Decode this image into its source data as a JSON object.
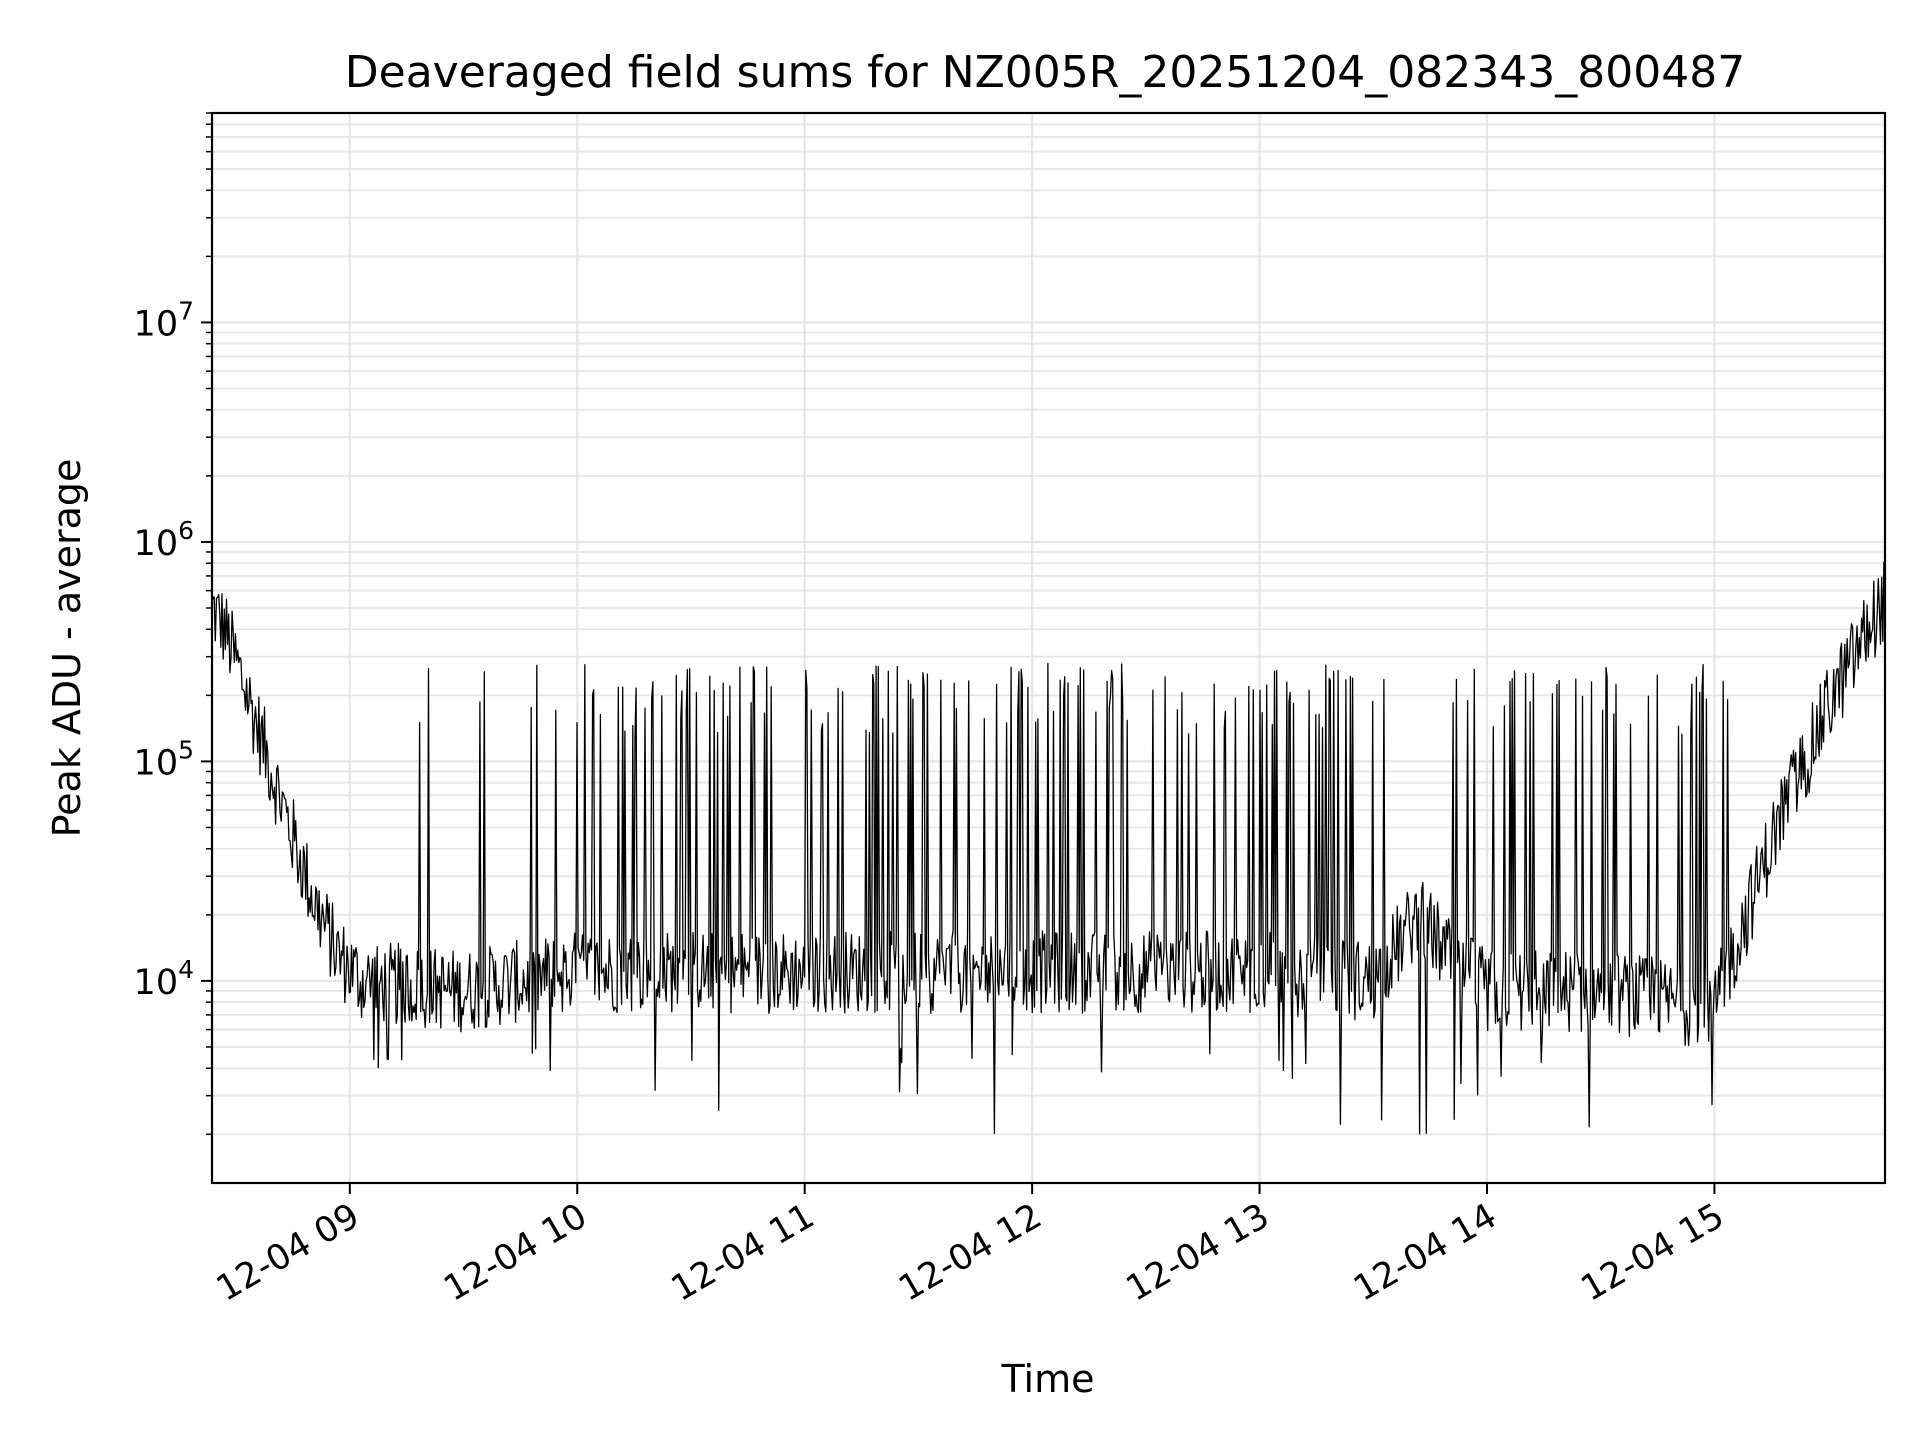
{
  "chart_data": {
    "type": "line",
    "title": "Deaveraged field sums for NZ005R_20251204_082343_800487",
    "xlabel": "Time",
    "ylabel": "Peak ADU - average",
    "yscale": "log",
    "xlim_hours": [
      8.394,
      15.75
    ],
    "ylim": [
      1200,
      90000000
    ],
    "x_ticks": [
      {
        "value": 9,
        "label": "12-04 09"
      },
      {
        "value": 10,
        "label": "12-04 10"
      },
      {
        "value": 11,
        "label": "12-04 11"
      },
      {
        "value": 12,
        "label": "12-04 12"
      },
      {
        "value": 13,
        "label": "12-04 13"
      },
      {
        "value": 14,
        "label": "12-04 14"
      },
      {
        "value": 15,
        "label": "12-04 15"
      }
    ],
    "y_ticks": [
      {
        "value": 10000,
        "base": "10",
        "exp": "4"
      },
      {
        "value": 100000,
        "base": "10",
        "exp": "5"
      },
      {
        "value": 1000000,
        "base": "10",
        "exp": "6"
      },
      {
        "value": 10000000,
        "base": "10",
        "exp": "7"
      }
    ],
    "grid": true,
    "line_color": "#000000",
    "grid_color": "#e6e6e6",
    "baseline_envelope": {
      "x": [
        8.394,
        8.45,
        8.55,
        8.65,
        8.75,
        8.85,
        8.95,
        9.05,
        9.5,
        10.0,
        11.0,
        12.0,
        13.0,
        13.5,
        13.7,
        13.85,
        14.0,
        14.5,
        15.0,
        15.1,
        15.2,
        15.3,
        15.4,
        15.5,
        15.6,
        15.7,
        15.75
      ],
      "y": [
        500000,
        400000,
        200000,
        95000,
        45000,
        22000,
        13000,
        10000,
        9000,
        11000,
        11000,
        11000,
        11000,
        10000,
        20000,
        12000,
        9000,
        9000,
        7500,
        15000,
        30000,
        60000,
        100000,
        180000,
        280000,
        450000,
        550000
      ]
    },
    "spike_peak_range": [
      130000,
      280000
    ],
    "dip_floor_range": [
      2000,
      5000
    ]
  }
}
